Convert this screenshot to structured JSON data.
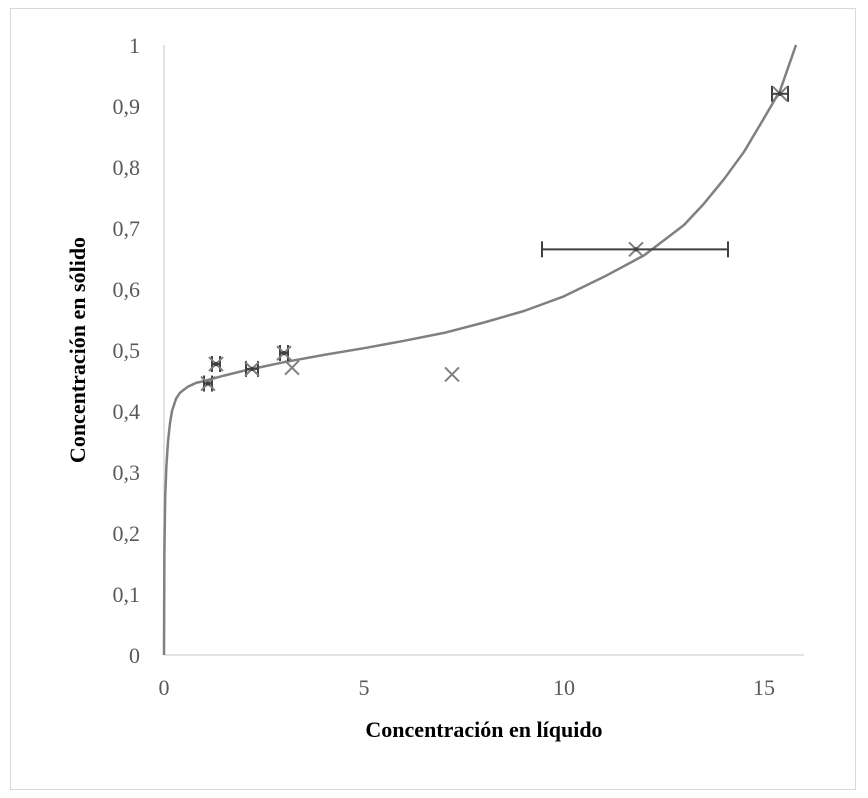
{
  "chart_data": {
    "type": "scatter",
    "title": "",
    "xlabel": "Concentración en líquido",
    "ylabel": "Concentración en sólido",
    "xlim": [
      0,
      16
    ],
    "ylim": [
      0,
      1
    ],
    "x_ticks": [
      0,
      5,
      10,
      15
    ],
    "x_tick_labels": [
      "0",
      "5",
      "10",
      "15"
    ],
    "y_ticks": [
      0,
      0.1,
      0.2,
      0.3,
      0.4,
      0.5,
      0.6,
      0.7,
      0.8,
      0.9,
      1
    ],
    "y_tick_labels": [
      "0",
      "0,1",
      "0,2",
      "0,3",
      "0,4",
      "0,5",
      "0,6",
      "0,7",
      "0,8",
      "0,9",
      "1"
    ],
    "grid": false,
    "legend": "none",
    "colors": {
      "axis": "#d9d9d9",
      "marker": "#7f7f7f",
      "errorbar": "#404040",
      "curve": "#808080"
    },
    "points_with_error_bars": [
      {
        "x": 1.1,
        "y": 0.445,
        "x_err_low": 1.0,
        "x_err_high": 1.2
      },
      {
        "x": 1.3,
        "y": 0.477,
        "x_err_low": 1.2,
        "x_err_high": 1.4
      },
      {
        "x": 2.2,
        "y": 0.469,
        "x_err_low": 2.05,
        "x_err_high": 2.35
      },
      {
        "x": 3.0,
        "y": 0.495,
        "x_err_low": 2.9,
        "x_err_high": 3.1
      },
      {
        "x": 11.8,
        "y": 0.665,
        "x_err_low": 9.45,
        "x_err_high": 14.1
      },
      {
        "x": 15.4,
        "y": 0.92,
        "x_err_low": 15.2,
        "x_err_high": 15.6
      }
    ],
    "points_plain": [
      {
        "x": 3.2,
        "y": 0.471
      },
      {
        "x": 7.2,
        "y": 0.46
      }
    ],
    "fit_curve": {
      "x": [
        0,
        0.01,
        0.03,
        0.06,
        0.1,
        0.15,
        0.2,
        0.3,
        0.4,
        0.5,
        0.6,
        0.7,
        0.8,
        1.0,
        1.5,
        2.0,
        3.0,
        4.0,
        5.0,
        6.0,
        7.0,
        8.0,
        9.0,
        10.0,
        11.0,
        12.0,
        12.5,
        13.0,
        13.5,
        14.0,
        14.5,
        15.0,
        15.4,
        15.8
      ],
      "y": [
        0,
        0.17,
        0.26,
        0.31,
        0.35,
        0.38,
        0.4,
        0.42,
        0.43,
        0.435,
        0.44,
        0.443,
        0.446,
        0.449,
        0.458,
        0.466,
        0.48,
        0.492,
        0.503,
        0.515,
        0.528,
        0.545,
        0.564,
        0.588,
        0.62,
        0.655,
        0.68,
        0.705,
        0.74,
        0.78,
        0.825,
        0.88,
        0.925,
        1.0
      ]
    }
  }
}
